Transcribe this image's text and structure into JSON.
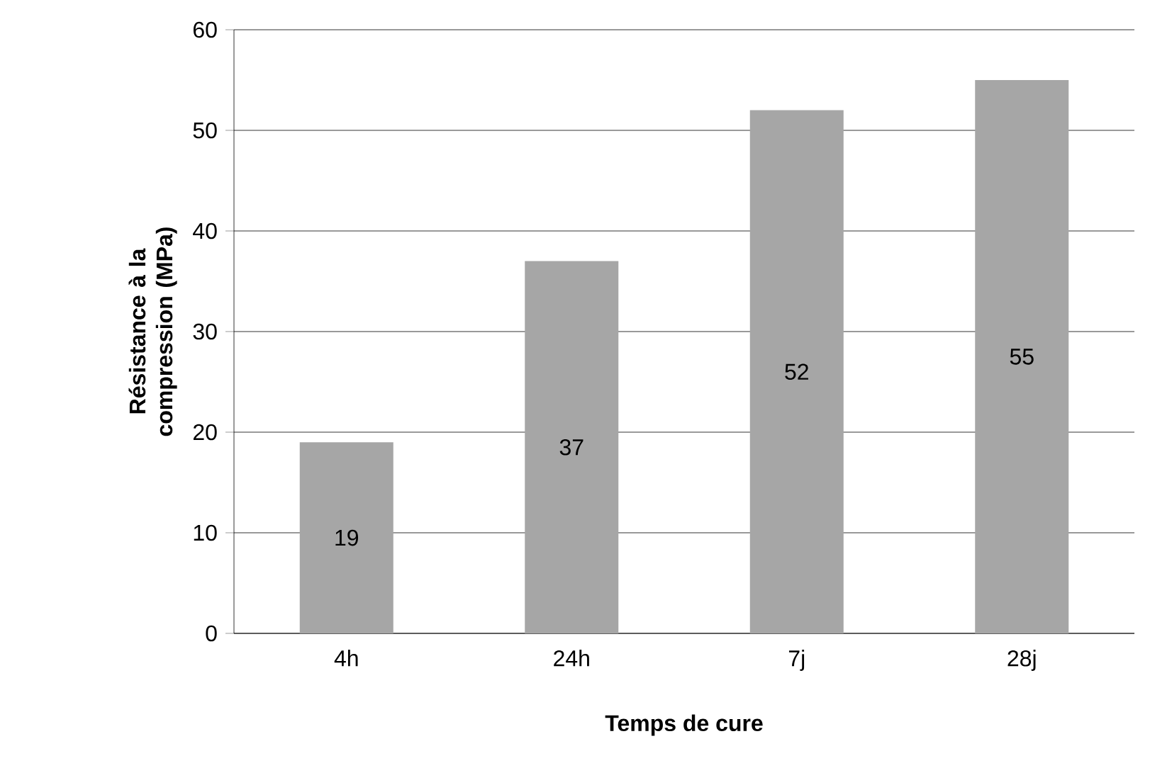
{
  "chart_data": {
    "type": "bar",
    "xlabel": "Temps de cure",
    "ylabel": "Résistance à la compression (MPa)",
    "categories": [
      "4h",
      "24h",
      "7j",
      "28j"
    ],
    "values": [
      19,
      37,
      52,
      55
    ],
    "color": "#a6a6a6",
    "ylim": [
      0,
      60
    ],
    "yticks": [
      0,
      10,
      20,
      30,
      40,
      50,
      60
    ],
    "grid": "y",
    "data_labels": true,
    "legend": false
  }
}
